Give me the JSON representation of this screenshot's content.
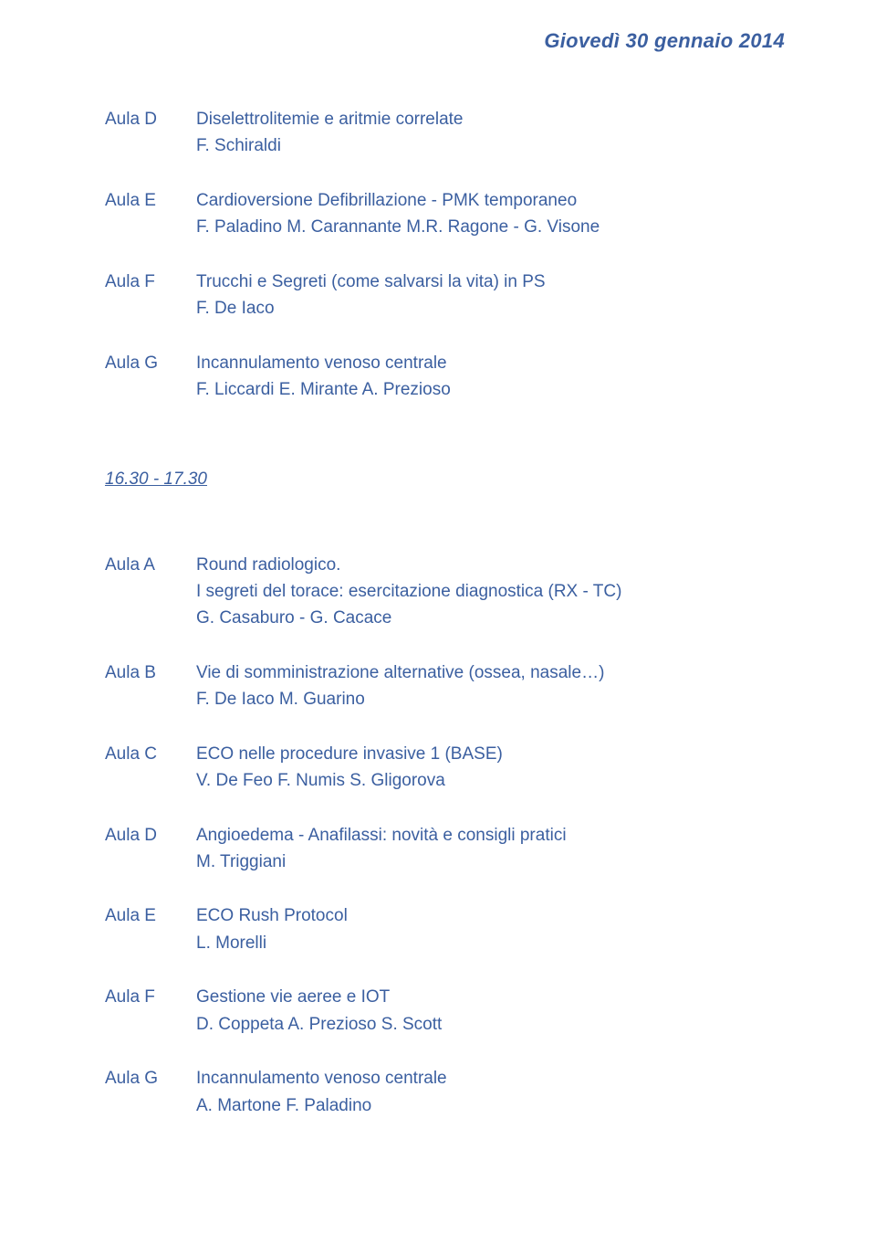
{
  "header": {
    "date": "Giovedì 30 gennaio 2014"
  },
  "colors": {
    "text": "#3b5fa0",
    "background": "#ffffff"
  },
  "typography": {
    "body_fontsize": 19,
    "header_fontsize": 22,
    "font_family": "Verdana"
  },
  "block1": [
    {
      "label": "Aula D",
      "title": "Diselettrolitemie e aritmie correlate",
      "speakers": "F. Schiraldi"
    },
    {
      "label": "Aula E",
      "title": "Cardioversione Defibrillazione - PMK temporaneo",
      "speakers": "F. Paladino M. Carannante M.R. Ragone - G. Visone"
    },
    {
      "label": "Aula F",
      "title": "Trucchi e Segreti (come salvarsi la vita) in PS",
      "speakers": "F. De Iaco"
    },
    {
      "label": "Aula G",
      "title": "Incannulamento venoso centrale",
      "speakers": "F. Liccardi E. Mirante A. Prezioso"
    }
  ],
  "time_divider": "16.30 - 17.30",
  "block2": [
    {
      "label": "Aula A",
      "title": "Round radiologico.",
      "subtitle": "I segreti del torace: esercitazione diagnostica (RX - TC)",
      "speakers": "G. Casaburo - G. Cacace"
    },
    {
      "label": "Aula B",
      "title": "Vie di somministrazione alternative (ossea, nasale…)",
      "speakers": "F. De Iaco M. Guarino"
    },
    {
      "label": "Aula C",
      "title": "ECO nelle procedure invasive 1 (BASE)",
      "speakers": "V. De Feo F. Numis S. Gligorova"
    },
    {
      "label": "Aula D",
      "title": "Angioedema - Anafilassi: novità e consigli pratici",
      "speakers": "M. Triggiani"
    },
    {
      "label": "Aula E",
      "title": "ECO Rush Protocol",
      "speakers": "L. Morelli"
    },
    {
      "label": "Aula F",
      "title": "Gestione vie aeree e IOT",
      "speakers": "D. Coppeta A. Prezioso S. Scott"
    },
    {
      "label": "Aula G",
      "title": "Incannulamento venoso centrale",
      "speakers": "A. Martone F. Paladino"
    }
  ]
}
